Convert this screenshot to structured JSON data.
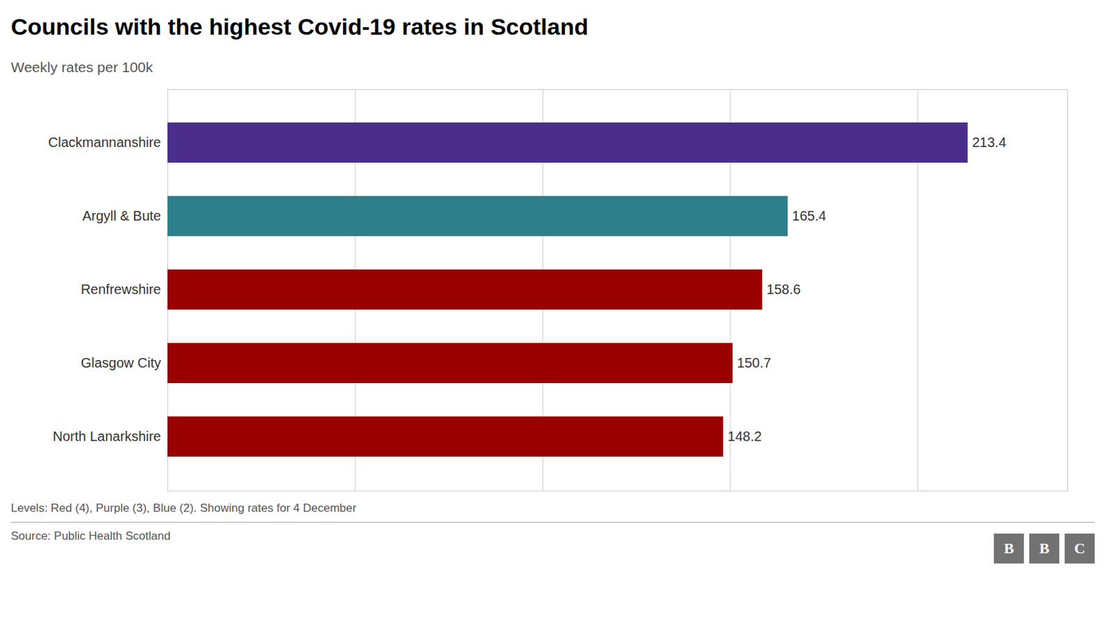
{
  "chart_data": {
    "type": "bar",
    "orientation": "horizontal",
    "title": "Councils with the highest Covid-19 rates in Scotland",
    "subtitle": "Weekly rates per 100k",
    "categories": [
      "North Lanarkshire",
      "Glasgow City",
      "Renfrewshire",
      "Argyll & Bute",
      "Clackmannanshire"
    ],
    "values": [
      148.2,
      150.7,
      158.6,
      165.4,
      213.4
    ],
    "colors": [
      "#9b0000",
      "#9b0000",
      "#9b0000",
      "#2e7f8c",
      "#4b2d8c"
    ],
    "xlim": [
      0,
      240
    ],
    "xticks": [
      0,
      50,
      100,
      150,
      200
    ],
    "grid": true,
    "tick_labels": "y",
    "data_labels": true,
    "annotations": [
      "Levels: Red (4), Purple (3), Blue (2). Showing rates for 4 December",
      "Source: Public Health Scotland"
    ],
    "logo": [
      "B",
      "B",
      "C"
    ]
  }
}
